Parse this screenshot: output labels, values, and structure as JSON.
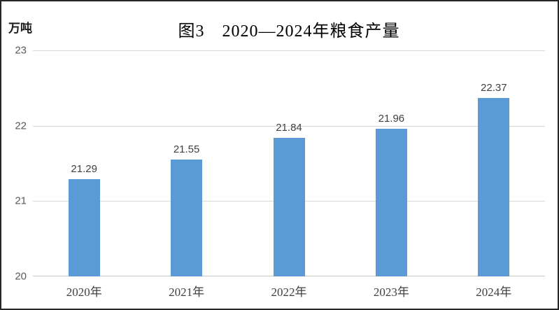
{
  "window": {
    "background": "#ffffff",
    "border_color": "#262626"
  },
  "header": {
    "title": "图3　2020—2024年粮食产量",
    "unit_label": "万吨"
  },
  "colors": {
    "bar": "#5b9bd5",
    "gridline": "#d9d9d9",
    "axis_line": "#c9c9c9",
    "tick_text": "#595959",
    "data_label_text": "#404040",
    "x_label_text": "#404040"
  },
  "chart_data": {
    "type": "bar",
    "title": "图3　2020—2024年粮食产量",
    "categories": [
      "2020年",
      "2021年",
      "2022年",
      "2023年",
      "2024年"
    ],
    "values": [
      21.29,
      21.55,
      21.84,
      21.96,
      22.37
    ],
    "data_labels": [
      "21.29",
      "21.55",
      "21.84",
      "21.96",
      "22.37"
    ],
    "xlabel": "",
    "ylabel": "万吨",
    "ylim": [
      20,
      23
    ],
    "yticks": [
      20,
      21,
      22,
      23
    ],
    "grid": true,
    "legend": false,
    "series_color": "#5b9bd5"
  }
}
